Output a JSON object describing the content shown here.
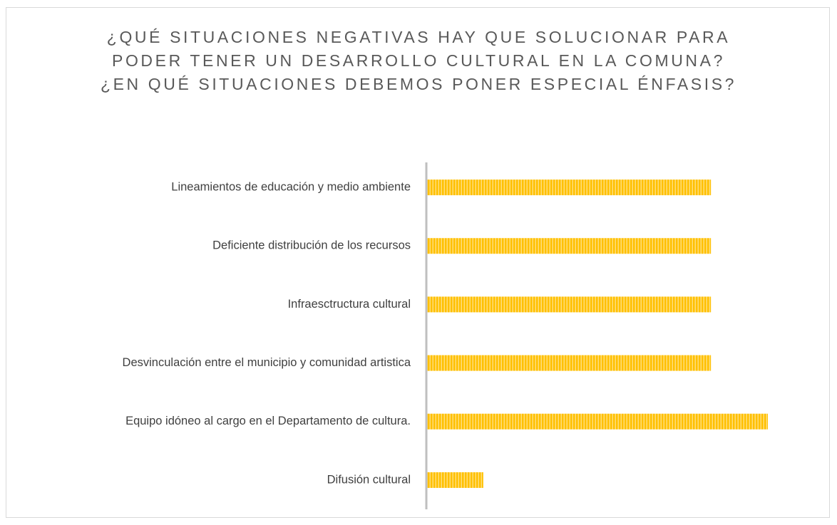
{
  "chart_data": {
    "type": "bar",
    "orientation": "horizontal",
    "title": "¿QUÉ SITUACIONES NEGATIVAS HAY QUE SOLUCIONAR PARA PODER TENER UN DESARROLLO CULTURAL EN LA COMUNA? ¿EN QUÉ SITUACIONES DEBEMOS PONER ESPECIAL ÉNFASIS?",
    "categories": [
      "Lineamientos de educación y medio ambiente",
      "Deficiente distribución de los recursos",
      "Infraesctructura cultural",
      "Desvinculación entre el municipio y comunidad artistica",
      "Equipo idóneo al cargo en el Departamento de cultura.",
      "Difusión cultural"
    ],
    "values": [
      5,
      5,
      5,
      5,
      6,
      1
    ],
    "color": "#FFC000",
    "xlim": [
      0,
      6
    ]
  }
}
